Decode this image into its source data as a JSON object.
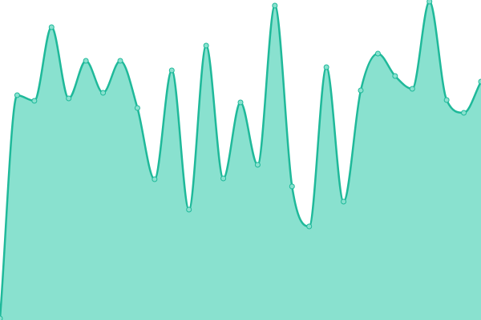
{
  "chart_data": {
    "type": "area",
    "categories": [
      null,
      null,
      null,
      null,
      null,
      null,
      null,
      null,
      null,
      null,
      null,
      null,
      null,
      null,
      null,
      null,
      null,
      null,
      null,
      null,
      null,
      null,
      null,
      null,
      null,
      null,
      null,
      null,
      null
    ],
    "series": [
      {
        "color": "#1fb99a",
        "fill": "#89e1cf",
        "values": [
          2,
          281,
          274,
          366,
          277,
          324,
          284,
          324,
          265,
          176,
          312,
          138,
          343,
          177,
          272,
          194,
          393,
          167,
          117,
          316,
          148,
          287,
          333,
          305,
          289,
          398,
          275,
          259,
          298
        ]
      }
    ],
    "ylim": [
      0,
      400
    ],
    "markers": true
  }
}
